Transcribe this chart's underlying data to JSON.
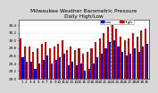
{
  "title": "Milwaukee Weather Barometric Pressure",
  "subtitle": "Daily High/Low",
  "bar_width": 0.45,
  "bar_color_high": "#cc0000",
  "bar_color_low": "#0000cc",
  "legend_high": "High",
  "legend_low": "Low",
  "ylim": [
    29.0,
    30.55
  ],
  "ybase": 29.0,
  "background_color": "#d8d8d8",
  "plot_bg_color": "#ffffff",
  "x_labels": [
    "1",
    "2",
    "3",
    "4",
    "5",
    "6",
    "7",
    "8",
    "9",
    "10",
    "11",
    "12",
    "13",
    "14",
    "15",
    "16",
    "17",
    "18",
    "19",
    "20",
    "21",
    "22",
    "23",
    "24",
    "25",
    "26",
    "27",
    "28",
    "29",
    "30",
    "31"
  ],
  "highs": [
    30.05,
    29.85,
    29.85,
    29.7,
    29.8,
    29.9,
    29.95,
    29.8,
    29.85,
    29.9,
    30.0,
    29.75,
    29.85,
    29.75,
    29.8,
    29.65,
    29.7,
    29.8,
    29.95,
    30.05,
    30.2,
    30.35,
    30.4,
    30.3,
    30.1,
    30.0,
    30.05,
    30.2,
    30.1,
    30.25,
    30.3
  ],
  "lows": [
    29.55,
    29.45,
    29.45,
    29.25,
    29.4,
    29.5,
    29.6,
    29.4,
    29.5,
    29.55,
    29.65,
    29.35,
    29.45,
    29.35,
    29.4,
    29.2,
    29.25,
    29.4,
    29.55,
    29.65,
    29.8,
    29.95,
    30.0,
    29.85,
    29.7,
    29.6,
    29.65,
    29.8,
    29.7,
    29.85,
    29.9
  ],
  "vline_pos": 21.5,
  "yticks": [
    29.0,
    29.2,
    29.4,
    29.6,
    29.8,
    30.0,
    30.2,
    30.4
  ],
  "title_fontsize": 4.2,
  "axis_fontsize": 3.0,
  "legend_fontsize": 3.2
}
